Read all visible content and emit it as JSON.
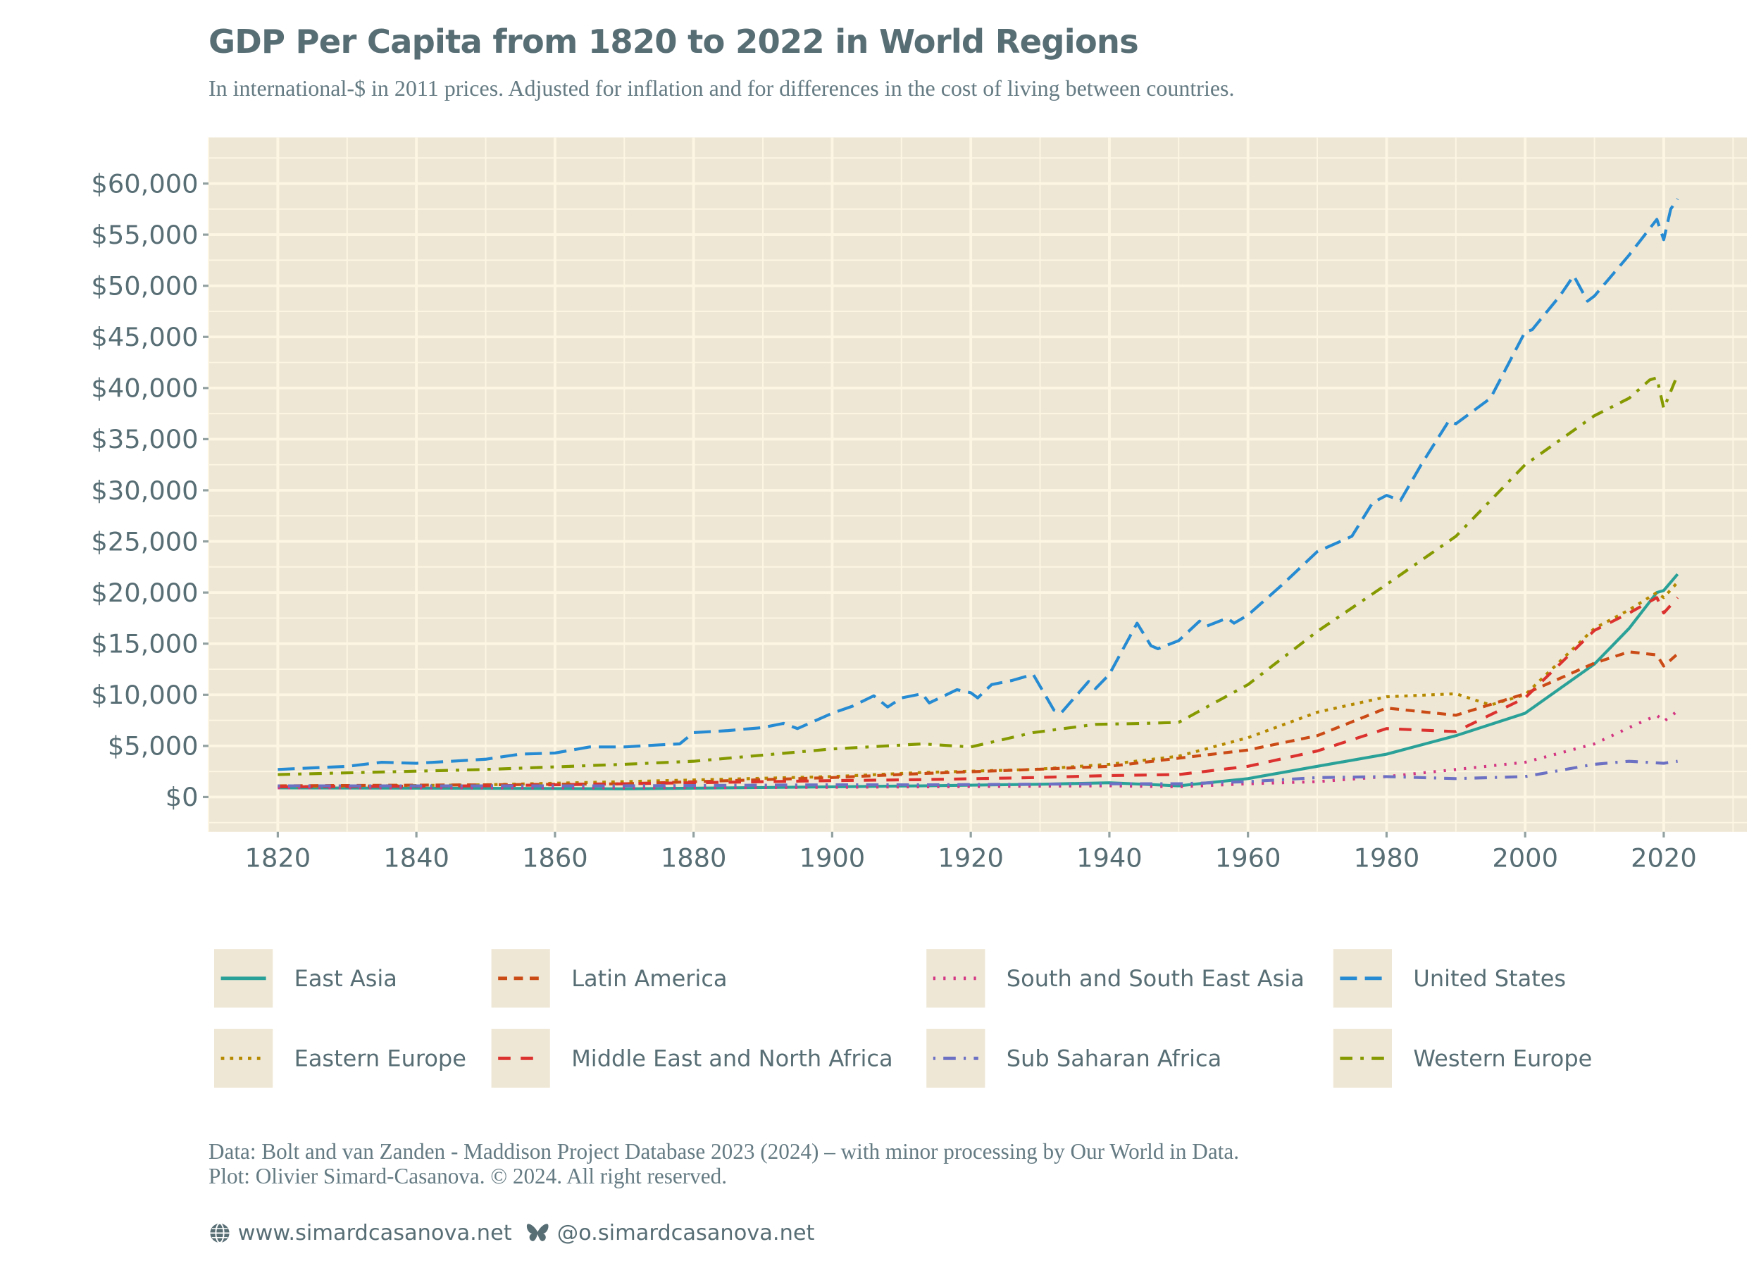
{
  "header": {
    "title": "GDP Per Capita from 1820 to 2022 in World Regions",
    "subtitle": "In international-$ in 2011 prices. Adjusted for inflation and for differences in the cost of living between countries."
  },
  "chart_data": {
    "type": "line",
    "title": "GDP Per Capita from 1820 to 2022 in World Regions",
    "subtitle": "In international-$ in 2011 prices. Adjusted for inflation and for differences in the cost of living between countries.",
    "xlabel": "",
    "ylabel": "",
    "xlim": [
      1810,
      2032
    ],
    "ylim": [
      -3400,
      64500
    ],
    "x_ticks": [
      1820,
      1840,
      1860,
      1880,
      1900,
      1920,
      1940,
      1960,
      1980,
      2000,
      2020
    ],
    "y_ticks": [
      0,
      5000,
      10000,
      15000,
      20000,
      25000,
      30000,
      35000,
      40000,
      45000,
      50000,
      55000,
      60000
    ],
    "y_tick_labels": [
      "$0",
      "$5,000",
      "$10,000",
      "$15,000",
      "$20,000",
      "$25,000",
      "$30,000",
      "$35,000",
      "$40,000",
      "$45,000",
      "$50,000",
      "$55,000",
      "$60,000"
    ],
    "grid": true,
    "legend_position": "bottom",
    "background": "#efe7d5",
    "series": [
      {
        "name": "East Asia",
        "color": "#2aa198",
        "dash": "solid",
        "points": [
          [
            1820,
            900
          ],
          [
            1850,
            850
          ],
          [
            1870,
            800
          ],
          [
            1900,
            1000
          ],
          [
            1913,
            1100
          ],
          [
            1930,
            1250
          ],
          [
            1940,
            1400
          ],
          [
            1950,
            1100
          ],
          [
            1960,
            1800
          ],
          [
            1970,
            3000
          ],
          [
            1980,
            4200
          ],
          [
            1990,
            6000
          ],
          [
            2000,
            8200
          ],
          [
            2010,
            13000
          ],
          [
            2015,
            16500
          ],
          [
            2019,
            20000
          ],
          [
            2020,
            20200
          ],
          [
            2021,
            21000
          ],
          [
            2022,
            21800
          ]
        ]
      },
      {
        "name": "Eastern Europe",
        "color": "#b58900",
        "dash": "dotted",
        "points": [
          [
            1820,
            1000
          ],
          [
            1850,
            1200
          ],
          [
            1870,
            1500
          ],
          [
            1900,
            2000
          ],
          [
            1913,
            2400
          ],
          [
            1929,
            2700
          ],
          [
            1940,
            3200
          ],
          [
            1950,
            4000
          ],
          [
            1960,
            5800
          ],
          [
            1970,
            8300
          ],
          [
            1980,
            9800
          ],
          [
            1990,
            10100
          ],
          [
            1995,
            9000
          ],
          [
            2000,
            10000
          ],
          [
            2010,
            16500
          ],
          [
            2015,
            18300
          ],
          [
            2019,
            20000
          ],
          [
            2020,
            19500
          ],
          [
            2022,
            21000
          ]
        ]
      },
      {
        "name": "Latin America",
        "color": "#cb4b16",
        "dash": "dashed",
        "points": [
          [
            1820,
            1100
          ],
          [
            1850,
            1200
          ],
          [
            1870,
            1300
          ],
          [
            1900,
            1900
          ],
          [
            1913,
            2300
          ],
          [
            1929,
            2700
          ],
          [
            1940,
            3000
          ],
          [
            1950,
            3800
          ],
          [
            1960,
            4600
          ],
          [
            1970,
            6000
          ],
          [
            1980,
            8700
          ],
          [
            1990,
            8000
          ],
          [
            2000,
            10100
          ],
          [
            2010,
            13100
          ],
          [
            2015,
            14200
          ],
          [
            2019,
            13900
          ],
          [
            2020,
            12800
          ],
          [
            2022,
            14000
          ]
        ]
      },
      {
        "name": "Middle East and North Africa",
        "color": "#dc322f",
        "dash": "longdash",
        "points": [
          [
            1820,
            1000
          ],
          [
            1850,
            1100
          ],
          [
            1870,
            1300
          ],
          [
            1900,
            1600
          ],
          [
            1913,
            1700
          ],
          [
            1929,
            1900
          ],
          [
            1940,
            2100
          ],
          [
            1950,
            2200
          ],
          [
            1960,
            3000
          ],
          [
            1970,
            4500
          ],
          [
            1980,
            6700
          ],
          [
            1990,
            6400
          ],
          [
            2000,
            9700
          ],
          [
            2010,
            16300
          ],
          [
            2015,
            18000
          ],
          [
            2019,
            19500
          ],
          [
            2020,
            18000
          ],
          [
            2022,
            19500
          ]
        ]
      },
      {
        "name": "South and South East Asia",
        "color": "#d33682",
        "dash": "dots",
        "points": [
          [
            1820,
            900
          ],
          [
            1850,
            900
          ],
          [
            1870,
            900
          ],
          [
            1900,
            950
          ],
          [
            1913,
            1000
          ],
          [
            1940,
            1100
          ],
          [
            1950,
            1000
          ],
          [
            1960,
            1300
          ],
          [
            1970,
            1500
          ],
          [
            1980,
            2000
          ],
          [
            1990,
            2700
          ],
          [
            2000,
            3400
          ],
          [
            2010,
            5200
          ],
          [
            2015,
            6800
          ],
          [
            2019,
            8000
          ],
          [
            2020,
            7400
          ],
          [
            2022,
            8400
          ]
        ]
      },
      {
        "name": "Sub Saharan Africa",
        "color": "#6c71c4",
        "dash": "dotdash",
        "points": [
          [
            1820,
            1100
          ],
          [
            1850,
            1100
          ],
          [
            1870,
            1100
          ],
          [
            1900,
            1200
          ],
          [
            1913,
            1200
          ],
          [
            1940,
            1300
          ],
          [
            1950,
            1300
          ],
          [
            1960,
            1500
          ],
          [
            1970,
            1900
          ],
          [
            1980,
            2000
          ],
          [
            1990,
            1800
          ],
          [
            2000,
            2000
          ],
          [
            2010,
            3200
          ],
          [
            2015,
            3500
          ],
          [
            2020,
            3300
          ],
          [
            2022,
            3500
          ]
        ]
      },
      {
        "name": "United States",
        "color": "#268bd2",
        "dash": "verylongdash",
        "points": [
          [
            1820,
            2700
          ],
          [
            1830,
            3000
          ],
          [
            1835,
            3400
          ],
          [
            1840,
            3300
          ],
          [
            1850,
            3700
          ],
          [
            1855,
            4200
          ],
          [
            1860,
            4300
          ],
          [
            1865,
            4900
          ],
          [
            1870,
            4900
          ],
          [
            1875,
            5100
          ],
          [
            1878,
            5200
          ],
          [
            1880,
            6300
          ],
          [
            1885,
            6500
          ],
          [
            1890,
            6800
          ],
          [
            1893,
            7200
          ],
          [
            1895,
            6700
          ],
          [
            1900,
            8200
          ],
          [
            1903,
            8900
          ],
          [
            1906,
            9900
          ],
          [
            1908,
            8800
          ],
          [
            1910,
            9700
          ],
          [
            1913,
            10100
          ],
          [
            1914,
            9200
          ],
          [
            1918,
            10500
          ],
          [
            1920,
            10200
          ],
          [
            1921,
            9700
          ],
          [
            1923,
            11000
          ],
          [
            1926,
            11400
          ],
          [
            1929,
            12000
          ],
          [
            1932,
            8500
          ],
          [
            1933,
            8200
          ],
          [
            1937,
            11300
          ],
          [
            1938,
            10600
          ],
          [
            1940,
            12000
          ],
          [
            1944,
            17000
          ],
          [
            1946,
            14800
          ],
          [
            1947,
            14500
          ],
          [
            1950,
            15300
          ],
          [
            1953,
            17200
          ],
          [
            1954,
            16700
          ],
          [
            1957,
            17500
          ],
          [
            1958,
            17000
          ],
          [
            1960,
            17800
          ],
          [
            1965,
            20800
          ],
          [
            1970,
            24000
          ],
          [
            1975,
            25500
          ],
          [
            1978,
            28800
          ],
          [
            1980,
            29500
          ],
          [
            1982,
            29000
          ],
          [
            1985,
            32500
          ],
          [
            1989,
            36800
          ],
          [
            1990,
            36500
          ],
          [
            1995,
            39000
          ],
          [
            2000,
            45500
          ],
          [
            2001,
            45700
          ],
          [
            2005,
            49000
          ],
          [
            2007,
            51000
          ],
          [
            2009,
            48500
          ],
          [
            2010,
            49000
          ],
          [
            2015,
            53000
          ],
          [
            2019,
            56500
          ],
          [
            2020,
            54500
          ],
          [
            2021,
            57500
          ],
          [
            2022,
            58500
          ]
        ]
      },
      {
        "name": "Western Europe",
        "color": "#859900",
        "dash": "dashdot",
        "points": [
          [
            1820,
            2200
          ],
          [
            1850,
            2700
          ],
          [
            1870,
            3200
          ],
          [
            1880,
            3500
          ],
          [
            1900,
            4700
          ],
          [
            1913,
            5200
          ],
          [
            1920,
            4900
          ],
          [
            1929,
            6300
          ],
          [
            1938,
            7100
          ],
          [
            1945,
            7200
          ],
          [
            1950,
            7300
          ],
          [
            1960,
            11000
          ],
          [
            1970,
            16200
          ],
          [
            1980,
            20800
          ],
          [
            1990,
            25500
          ],
          [
            2000,
            32500
          ],
          [
            2010,
            37300
          ],
          [
            2015,
            39000
          ],
          [
            2018,
            40800
          ],
          [
            2019,
            41000
          ],
          [
            2020,
            38000
          ],
          [
            2022,
            41300
          ]
        ]
      }
    ]
  },
  "legend": {
    "items": [
      {
        "label": "East Asia"
      },
      {
        "label": "Eastern Europe"
      },
      {
        "label": "Latin America"
      },
      {
        "label": "Middle East and North Africa"
      },
      {
        "label": "South and South East Asia"
      },
      {
        "label": "Sub Saharan Africa"
      },
      {
        "label": "United States"
      },
      {
        "label": "Western Europe"
      }
    ]
  },
  "caption": {
    "line1": "Data: Bolt and van Zanden - Maddison Project Database 2023 (2024) – with minor processing by Our World in Data.",
    "line2": "Plot: Olivier Simard-Casanova. © 2024. All right reserved."
  },
  "footer": {
    "website": "www.simardcasanova.net",
    "website_icon": "globe-icon",
    "bluesky": "@o.simardcasanova.net",
    "bluesky_icon": "butterfly-icon"
  }
}
